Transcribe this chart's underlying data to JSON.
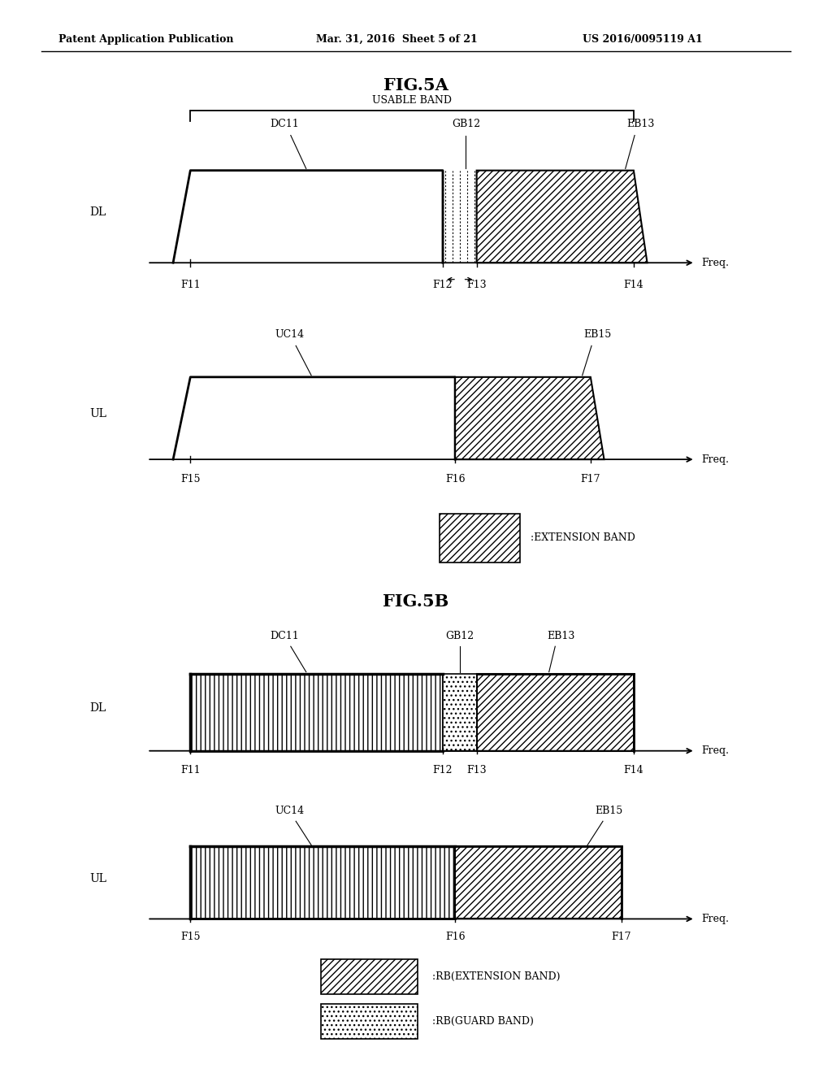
{
  "bg_color": "#ffffff",
  "header_text": "Patent Application Publication",
  "header_date": "Mar. 31, 2016  Sheet 5 of 21",
  "header_patent": "US 2016/0095119 A1",
  "fig5a_title": "FIG.5A",
  "fig5b_title": "FIG.5B",
  "usable_band_label": "USABLE BAND",
  "dl_label": "DL",
  "ul_label": "UL",
  "freq_label": "Freq.",
  "dc11_label": "DC11",
  "gb12_label": "GB12",
  "eb13_label": "EB13",
  "uc14_label": "UC14",
  "eb15_label": "EB15",
  "f11_label": "F11",
  "f12_label": "F12",
  "f13_label": "F13",
  "f14_label": "F14",
  "f15_label": "F15",
  "f16_label": "F16",
  "f17_label": "F17",
  "extension_band_legend": ":EXTENSION BAND",
  "rb_extension_legend": ":RB(EXTENSION BAND)",
  "rb_guard_legend": ":RB(GUARD BAND)"
}
